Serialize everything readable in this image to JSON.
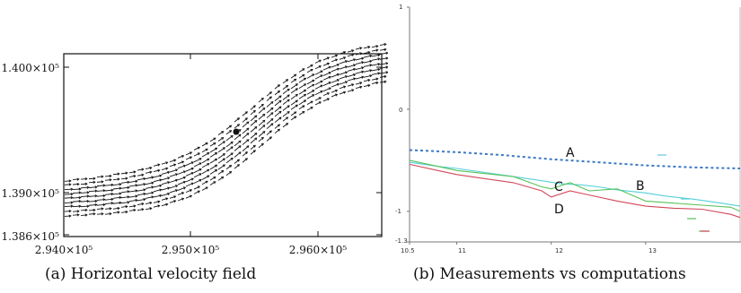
{
  "chart_data": [
    {
      "type": "scatter",
      "title": "",
      "xlabel": "",
      "ylabel": "",
      "xlim": [
        294000,
        296500
      ],
      "ylim": [
        138600,
        140200
      ],
      "x_ticks": [
        "2.940×10⁵",
        "2.950×10⁵",
        "2.960×10⁵"
      ],
      "y_ticks": [
        "1.386×10⁵",
        "1.390×10⁵",
        "1.400×10⁵"
      ],
      "grid": false,
      "description_marks": "arrow glyphs along a curved channel"
    },
    {
      "type": "line",
      "title": "",
      "xlabel": "",
      "ylabel": "",
      "xlim": [
        10.5,
        14
      ],
      "ylim": [
        -1.3,
        1
      ],
      "x_ticks": [
        "10.5",
        "11",
        "12",
        "13"
      ],
      "y_ticks": [
        "1",
        "0",
        "-1",
        "-1.3"
      ],
      "grid": false,
      "series_labels": [
        "A",
        "B",
        "C",
        "D"
      ],
      "series": [
        {
          "name": "A",
          "x": [
            10.5,
            11,
            11.5,
            12,
            12.5,
            13,
            13.5,
            14
          ],
          "y": [
            -0.4,
            -0.42,
            -0.45,
            -0.49,
            -0.52,
            -0.55,
            -0.57,
            -0.58
          ]
        },
        {
          "name": "B",
          "x": [
            10.5,
            10.8,
            11,
            11.3,
            11.6,
            11.9,
            12.1,
            12.3,
            12.5,
            12.7,
            13,
            13.2,
            13.5,
            13.8,
            14
          ],
          "y": [
            -0.52,
            -0.56,
            -0.58,
            -0.62,
            -0.66,
            -0.7,
            -0.73,
            -0.74,
            -0.76,
            -0.79,
            -0.82,
            -0.85,
            -0.88,
            -0.92,
            -0.95
          ]
        },
        {
          "name": "C",
          "x": [
            10.5,
            10.8,
            11,
            11.3,
            11.6,
            11.9,
            12,
            12.2,
            12.4,
            12.7,
            13,
            13.3,
            13.6,
            13.9,
            14
          ],
          "y": [
            -0.5,
            -0.56,
            -0.6,
            -0.63,
            -0.66,
            -0.76,
            -0.78,
            -0.72,
            -0.8,
            -0.78,
            -0.9,
            -0.92,
            -0.94,
            -0.96,
            -1.0
          ]
        },
        {
          "name": "D",
          "x": [
            10.5,
            10.8,
            11,
            11.3,
            11.6,
            11.9,
            12,
            12.2,
            12.4,
            12.7,
            13,
            13.3,
            13.6,
            13.9,
            14
          ],
          "y": [
            -0.54,
            -0.6,
            -0.64,
            -0.68,
            -0.72,
            -0.8,
            -0.86,
            -0.8,
            -0.84,
            -0.9,
            -0.95,
            -0.97,
            -0.98,
            -1.03,
            -1.06
          ]
        }
      ],
      "colors": {
        "A": "#3b78c4",
        "B": "#55d0d8",
        "C": "#58c25a",
        "D": "#d2475a"
      }
    }
  ],
  "captions": {
    "a": "(a) Horizontal velocity field",
    "b": "(b) Measurements vs computations"
  }
}
